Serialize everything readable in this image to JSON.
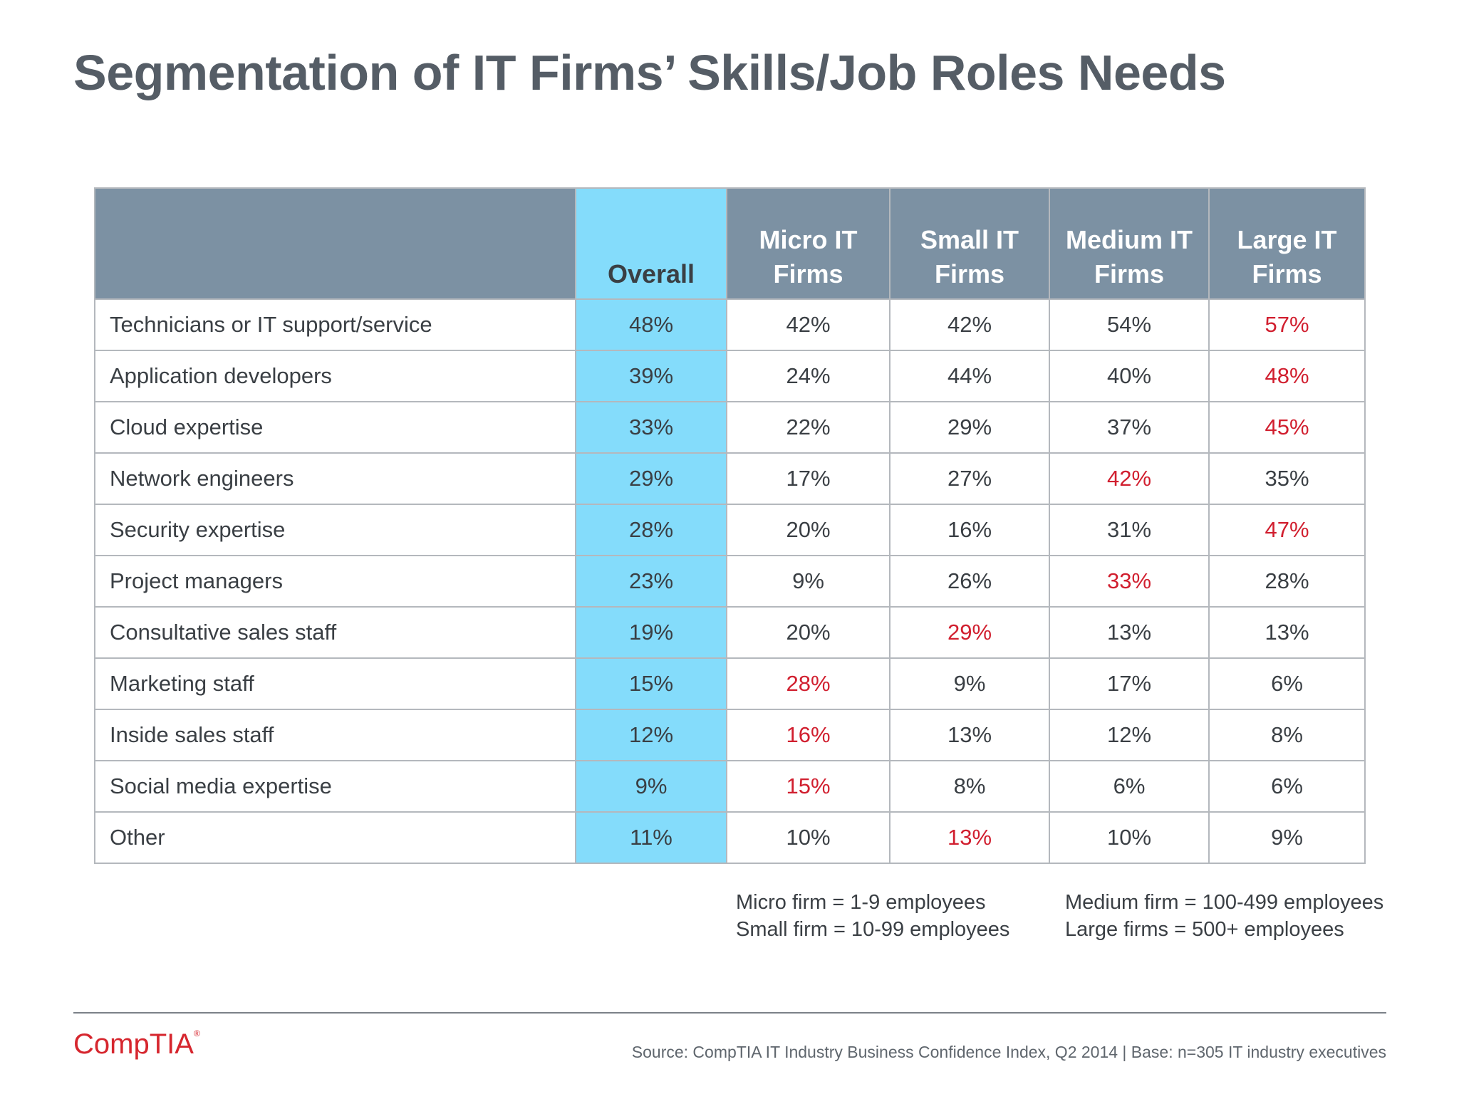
{
  "slide": {
    "title": "Segmentation of IT Firms’ Skills/Job Roles Needs"
  },
  "table": {
    "headers": [
      "",
      "Overall",
      "Micro IT\nFirms",
      "Small IT\nFirms",
      "Medium IT\nFirms",
      "Large IT\nFirms"
    ],
    "rows": [
      {
        "label": "Technicians or IT support/service",
        "values": [
          "48%",
          "42%",
          "42%",
          "54%",
          "57%"
        ],
        "highlight": [
          4
        ]
      },
      {
        "label": "Application developers",
        "values": [
          "39%",
          "24%",
          "44%",
          "40%",
          "48%"
        ],
        "highlight": [
          4
        ]
      },
      {
        "label": "Cloud expertise",
        "values": [
          "33%",
          "22%",
          "29%",
          "37%",
          "45%"
        ],
        "highlight": [
          4
        ]
      },
      {
        "label": "Network engineers",
        "values": [
          "29%",
          "17%",
          "27%",
          "42%",
          "35%"
        ],
        "highlight": [
          3
        ]
      },
      {
        "label": "Security expertise",
        "values": [
          "28%",
          "20%",
          "16%",
          "31%",
          "47%"
        ],
        "highlight": [
          4
        ]
      },
      {
        "label": "Project managers",
        "values": [
          "23%",
          "9%",
          "26%",
          "33%",
          "28%"
        ],
        "highlight": [
          3
        ]
      },
      {
        "label": "Consultative sales staff",
        "values": [
          "19%",
          "20%",
          "29%",
          "13%",
          "13%"
        ],
        "highlight": [
          2
        ]
      },
      {
        "label": "Marketing staff",
        "values": [
          "15%",
          "28%",
          "9%",
          "17%",
          "6%"
        ],
        "highlight": [
          1
        ]
      },
      {
        "label": "Inside sales staff",
        "values": [
          "12%",
          "16%",
          "13%",
          "12%",
          "8%"
        ],
        "highlight": [
          1
        ]
      },
      {
        "label": "Social media expertise",
        "values": [
          "9%",
          "15%",
          "8%",
          "6%",
          "6%"
        ],
        "highlight": [
          1
        ]
      },
      {
        "label": "Other",
        "values": [
          "11%",
          "10%",
          "13%",
          "10%",
          "9%"
        ],
        "highlight": [
          2
        ]
      }
    ]
  },
  "footnotes": {
    "left": [
      "Micro firm = 1-9 employees",
      "Small firm = 10-99 employees"
    ],
    "right": [
      "Medium firm = 100-499 employees",
      "Large firms = 500+ employees"
    ]
  },
  "footer": {
    "logo": "CompTIA",
    "source": "Source: CompTIA IT Industry Business Confidence Index, Q2 2014 | Base: n=305 IT industry executives"
  },
  "colors": {
    "header_bg": "#7c91a3",
    "overall_bg": "#84dcfb",
    "highlight_text": "#d11f2f",
    "logo": "#d6262e"
  }
}
